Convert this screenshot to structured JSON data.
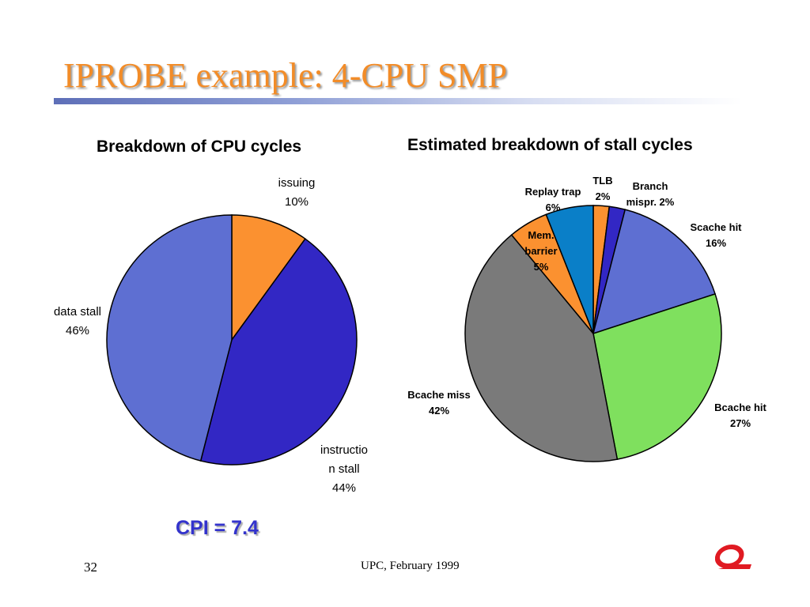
{
  "slide": {
    "title": "IPROBE example: 4-CPU SMP",
    "cpi": "CPI = 7.4",
    "page_number": "32",
    "footer": "UPC, February 1999"
  },
  "chart_data": [
    {
      "type": "pie",
      "title": "Breakdown of CPU cycles",
      "labels": [
        "issuing",
        "instruction stall",
        "data stall"
      ],
      "label_lines": [
        [
          "issuing",
          "10%"
        ],
        [
          "instructio",
          "n stall",
          "44%"
        ],
        [
          "data stall",
          "46%"
        ]
      ],
      "values": [
        10,
        44,
        46
      ],
      "colors": [
        "#fb9130",
        "#3227c4",
        "#5e6fd2"
      ]
    },
    {
      "type": "pie",
      "title": "Estimated breakdown of stall cycles",
      "labels": [
        "TLB",
        "Branch mispr.",
        "Scache hit",
        "Bcache hit",
        "Bcache miss",
        "Mem. barrier",
        "Replay trap"
      ],
      "label_lines": [
        [
          "TLB",
          "2%"
        ],
        [
          "Branch",
          "mispr. 2%"
        ],
        [
          "Scache hit",
          "16%"
        ],
        [
          "Bcache hit",
          "27%"
        ],
        [
          "Bcache miss",
          "42%"
        ],
        [
          "Mem.",
          "barrier",
          "5%"
        ],
        [
          "Replay trap",
          "6%"
        ]
      ],
      "values": [
        2,
        2,
        16,
        27,
        42,
        5,
        6
      ],
      "colors": [
        "#fb9130",
        "#3227c4",
        "#5e6fd2",
        "#7fe05e",
        "#7a7a7a",
        "#fb9130",
        "#0a7fc8"
      ]
    }
  ]
}
